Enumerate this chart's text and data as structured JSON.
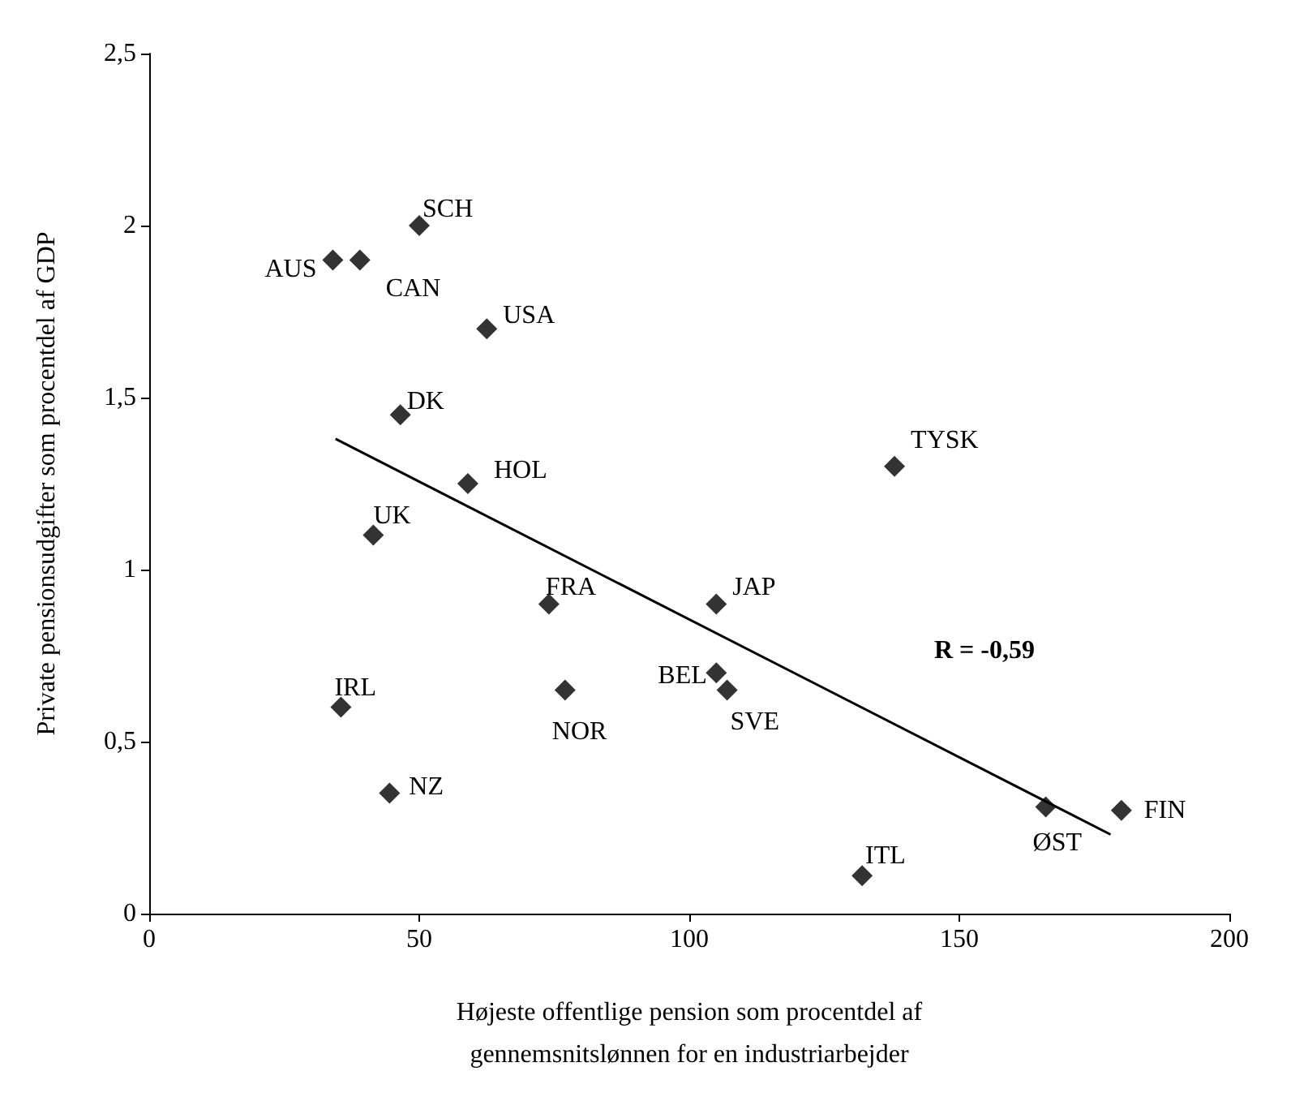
{
  "chart_data": {
    "type": "scatter",
    "xlabel": "Højeste offentlige pension som procentdel af\ngennemsnitslønnen for en industriarbejder",
    "ylabel": "Private pensionsudgifter som procentdel af GDP",
    "x": [
      34,
      39,
      50,
      62.5,
      46.5,
      59,
      41.5,
      74,
      105,
      138,
      105,
      107,
      77,
      35.5,
      44.5,
      132,
      166,
      180
    ],
    "values": [
      1.9,
      1.9,
      2.0,
      1.7,
      1.45,
      1.25,
      1.1,
      0.9,
      0.9,
      1.3,
      0.7,
      0.65,
      0.65,
      0.6,
      0.35,
      0.11,
      0.31,
      0.3
    ],
    "color": "#000000",
    "marker": "diamond",
    "series": [
      {
        "type": "line",
        "color": "#000000",
        "marker": "none",
        "x": [
          34.5,
          178
        ],
        "values": [
          1.38,
          0.23
        ]
      }
    ],
    "annotations": [
      {
        "text": "AUS",
        "x": 34,
        "y": 1.9
      },
      {
        "text": "CAN",
        "x": 39,
        "y": 1.9
      },
      {
        "text": "SCH",
        "x": 50,
        "y": 2.0
      },
      {
        "text": "USA",
        "x": 62.5,
        "y": 1.7
      },
      {
        "text": "DK",
        "x": 46.5,
        "y": 1.45
      },
      {
        "text": "HOL",
        "x": 59,
        "y": 1.25
      },
      {
        "text": "UK",
        "x": 41.5,
        "y": 1.1
      },
      {
        "text": "FRA",
        "x": 74,
        "y": 0.9
      },
      {
        "text": "JAP",
        "x": 105,
        "y": 0.9
      },
      {
        "text": "TYSK",
        "x": 138,
        "y": 1.3
      },
      {
        "text": "BEL",
        "x": 105,
        "y": 0.7
      },
      {
        "text": "SVE",
        "x": 107,
        "y": 0.65
      },
      {
        "text": "NOR",
        "x": 77,
        "y": 0.65
      },
      {
        "text": "IRL",
        "x": 35.5,
        "y": 0.6
      },
      {
        "text": "NZ",
        "x": 44.5,
        "y": 0.35
      },
      {
        "text": "ITL",
        "x": 132,
        "y": 0.11
      },
      {
        "text": "ØST",
        "x": 166,
        "y": 0.31
      },
      {
        "text": "FIN",
        "x": 180,
        "y": 0.3
      },
      "R = -0,59"
    ],
    "xlim": [
      0,
      200
    ],
    "xticks": [
      0,
      50,
      100,
      150,
      200
    ],
    "ylim": [
      0,
      2.5
    ],
    "yticks": [
      0,
      {
        "value": 0.5,
        "label": "0,5"
      },
      1,
      {
        "value": 1.5,
        "label": "1,5"
      },
      2,
      {
        "value": 2.5,
        "label": "2,5"
      }
    ],
    "grid": false
  }
}
